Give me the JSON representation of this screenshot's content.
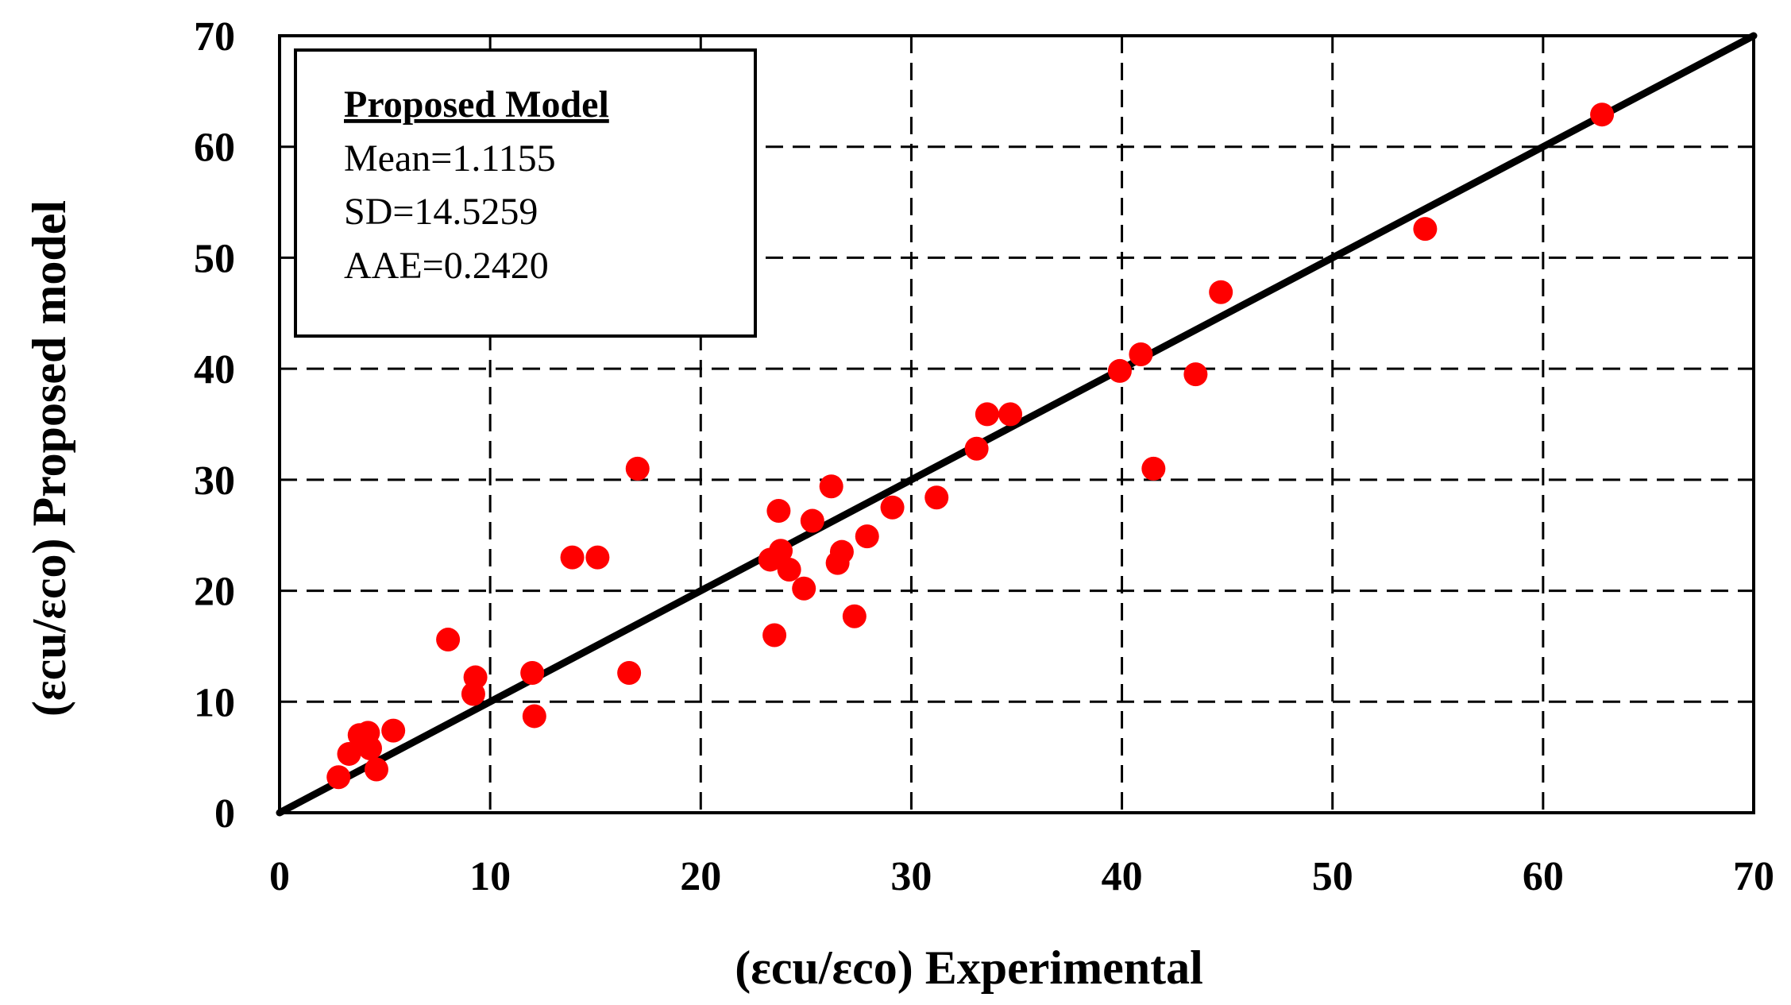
{
  "chart_data": {
    "type": "scatter",
    "xlabel": "(εcu/εco) Experimental",
    "ylabel": "(εcu/εco) Proposed model",
    "xlim": [
      0,
      70
    ],
    "ylim": [
      0,
      70
    ],
    "xticks": [
      0,
      10,
      20,
      30,
      40,
      50,
      60,
      70
    ],
    "yticks": [
      0,
      10,
      20,
      30,
      40,
      50,
      60,
      70
    ],
    "grid": "dashed",
    "reference_line": {
      "name": "y = x",
      "from": [
        0,
        0
      ],
      "to": [
        70,
        70
      ],
      "color": "#000000"
    },
    "marker_color": "#ff0000",
    "legend": {
      "title": "Proposed Model",
      "lines": [
        "Mean=1.1155",
        "SD=14.5259",
        "AAE=0.2420"
      ],
      "position": "top-left"
    },
    "series": [
      {
        "name": "Data",
        "points": [
          [
            2.8,
            3.2
          ],
          [
            3.3,
            5.3
          ],
          [
            3.8,
            7.0
          ],
          [
            4.2,
            7.2
          ],
          [
            4.3,
            5.8
          ],
          [
            4.6,
            3.9
          ],
          [
            5.4,
            7.4
          ],
          [
            8.0,
            15.6
          ],
          [
            9.2,
            10.7
          ],
          [
            9.3,
            12.2
          ],
          [
            12.0,
            12.6
          ],
          [
            12.1,
            8.7
          ],
          [
            13.9,
            23.0
          ],
          [
            15.1,
            23.0
          ],
          [
            16.6,
            12.6
          ],
          [
            17.0,
            31.0
          ],
          [
            23.3,
            22.8
          ],
          [
            23.5,
            16.0
          ],
          [
            23.7,
            27.2
          ],
          [
            23.8,
            23.6
          ],
          [
            24.2,
            21.9
          ],
          [
            24.9,
            20.2
          ],
          [
            25.3,
            26.3
          ],
          [
            26.2,
            29.4
          ],
          [
            26.5,
            22.5
          ],
          [
            26.7,
            23.5
          ],
          [
            27.3,
            17.7
          ],
          [
            27.9,
            24.9
          ],
          [
            29.1,
            27.5
          ],
          [
            31.2,
            28.4
          ],
          [
            33.1,
            32.8
          ],
          [
            33.6,
            35.9
          ],
          [
            34.7,
            35.9
          ],
          [
            39.9,
            39.8
          ],
          [
            40.9,
            41.3
          ],
          [
            41.5,
            31.0
          ],
          [
            43.5,
            39.5
          ],
          [
            44.7,
            46.9
          ],
          [
            54.4,
            52.6
          ],
          [
            62.8,
            62.9
          ]
        ]
      }
    ]
  }
}
